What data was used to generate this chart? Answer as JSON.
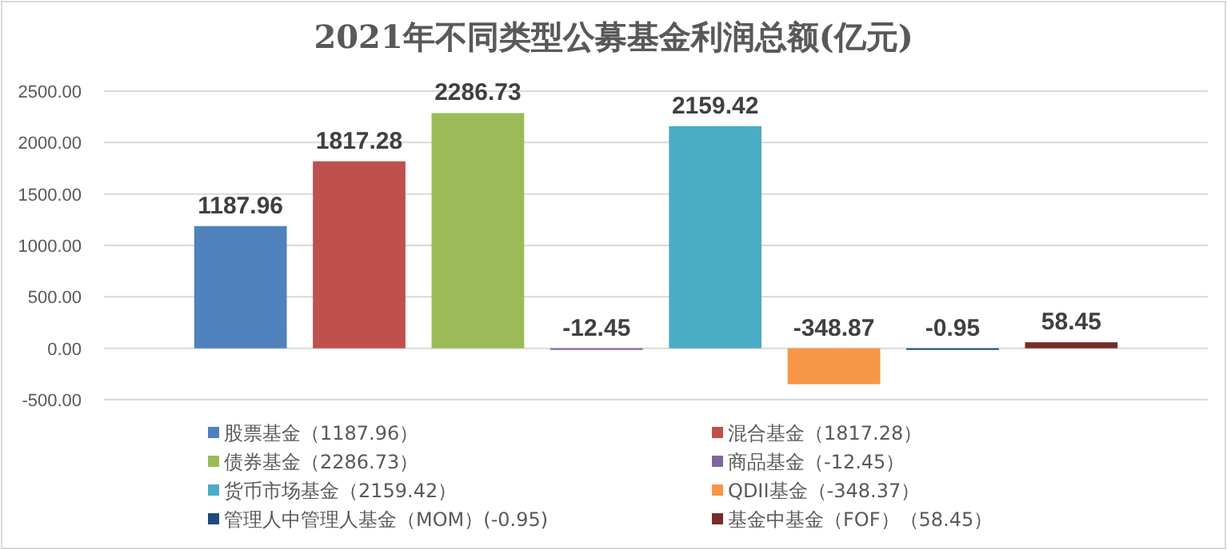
{
  "chart_data": {
    "type": "bar",
    "title": "2021年不同类型公募基金利润总额(亿元)",
    "categories": [
      null
    ],
    "series": [
      {
        "name": "股票基金（1187.96）",
        "color": "#4f81bd",
        "values": [
          1187.96
        ]
      },
      {
        "name": "混合基金（1817.28）",
        "color": "#c0504d",
        "values": [
          1817.28
        ]
      },
      {
        "name": "债券基金（2286.73）",
        "color": "#9bbb59",
        "values": [
          2286.73
        ]
      },
      {
        "name": "商品基金（-12.45）",
        "color": "#8064a2",
        "values": [
          -12.45
        ]
      },
      {
        "name": "货币市场基金（2159.42）",
        "color": "#4bacc6",
        "values": [
          2159.42
        ]
      },
      {
        "name": "QDII基金（-348.37）",
        "color": "#f79646",
        "values": [
          -348.87
        ]
      },
      {
        "name": "管理人中管理人基金（MOM）(-0.95)",
        "color": "#1f497d",
        "values": [
          -0.95
        ]
      },
      {
        "name": "基金中基金（FOF）（58.45）",
        "color": "#772c2a",
        "values": [
          58.45
        ]
      }
    ],
    "ylim": [
      -500,
      2500
    ],
    "yticks": [
      {
        "value": -500,
        "label": "-500.00"
      },
      {
        "value": 0,
        "label": "0.00"
      },
      {
        "value": 500,
        "label": "500.00"
      },
      {
        "value": 1000,
        "label": "1000.00"
      },
      {
        "value": 1500,
        "label": "1500.00"
      },
      {
        "value": 2000,
        "label": "2000.00"
      },
      {
        "value": 2500,
        "label": "2500.00"
      }
    ],
    "grid": "y",
    "data_labels": true,
    "legend": "bottom"
  }
}
